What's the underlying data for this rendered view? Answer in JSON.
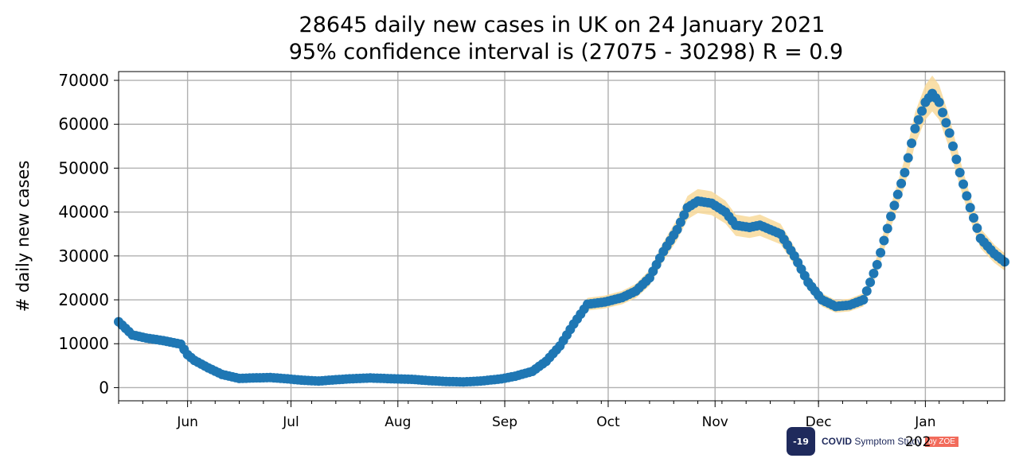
{
  "chart_data": {
    "type": "scatter",
    "title": [
      "28645 daily new cases in UK on 24 January 2021",
      "95% confidence interval is (27075 - 30298) R = 0.9"
    ],
    "ylabel": "# daily new cases",
    "xlabel": "",
    "x_tick_labels": [
      "Jun",
      "Jul",
      "Aug",
      "Sep",
      "Oct",
      "Nov",
      "Dec",
      "Jan"
    ],
    "year_label": "202",
    "y_ticks": [
      0,
      10000,
      20000,
      30000,
      40000,
      50000,
      60000,
      70000
    ],
    "xlim": [
      "2020-05-12",
      "2021-01-24"
    ],
    "ylim": [
      -3000,
      72000
    ],
    "grid": true,
    "colors": {
      "points": "#1f77b4",
      "confidence_band": "#f8d99a",
      "grid": "#b0b0b0"
    },
    "series": [
      {
        "points": [
          [
            "2020-05-12",
            15000
          ],
          [
            "2020-05-16",
            12000
          ],
          [
            "2020-05-20",
            11300
          ],
          [
            "2020-05-25",
            10700
          ],
          [
            "2020-05-30",
            9900
          ],
          [
            "2020-06-01",
            7500
          ],
          [
            "2020-06-03",
            6200
          ],
          [
            "2020-06-07",
            4500
          ],
          [
            "2020-06-11",
            3000
          ],
          [
            "2020-06-16",
            2100
          ],
          [
            "2020-06-20",
            2200
          ],
          [
            "2020-06-25",
            2300
          ],
          [
            "2020-06-30",
            2000
          ],
          [
            "2020-07-04",
            1700
          ],
          [
            "2020-07-09",
            1500
          ],
          [
            "2020-07-14",
            1800
          ],
          [
            "2020-07-18",
            2000
          ],
          [
            "2020-07-24",
            2200
          ],
          [
            "2020-07-31",
            2000
          ],
          [
            "2020-08-05",
            1900
          ],
          [
            "2020-08-10",
            1600
          ],
          [
            "2020-08-15",
            1400
          ],
          [
            "2020-08-20",
            1300
          ],
          [
            "2020-08-25",
            1500
          ],
          [
            "2020-08-31",
            2000
          ],
          [
            "2020-09-04",
            2600
          ],
          [
            "2020-09-09",
            3700
          ],
          [
            "2020-09-13",
            6000
          ],
          [
            "2020-09-17",
            9500
          ],
          [
            "2020-09-21",
            14500
          ],
          [
            "2020-09-25",
            19000
          ],
          [
            "2020-09-30",
            19500
          ],
          [
            "2020-10-05",
            20500
          ],
          [
            "2020-10-09",
            22000
          ],
          [
            "2020-10-13",
            25000
          ],
          [
            "2020-10-17",
            31000
          ],
          [
            "2020-10-21",
            36000
          ],
          [
            "2020-10-24",
            41000
          ],
          [
            "2020-10-27",
            42500
          ],
          [
            "2020-10-31",
            42000
          ],
          [
            "2020-11-04",
            40000
          ],
          [
            "2020-11-07",
            37000
          ],
          [
            "2020-11-11",
            36500
          ],
          [
            "2020-11-14",
            37000
          ],
          [
            "2020-11-17",
            36000
          ],
          [
            "2020-11-20",
            35000
          ],
          [
            "2020-11-24",
            30000
          ],
          [
            "2020-11-28",
            24000
          ],
          [
            "2020-12-02",
            20000
          ],
          [
            "2020-12-06",
            18500
          ],
          [
            "2020-12-10",
            18800
          ],
          [
            "2020-12-14",
            20000
          ],
          [
            "2020-12-18",
            28000
          ],
          [
            "2020-12-22",
            39000
          ],
          [
            "2020-12-26",
            49000
          ],
          [
            "2020-12-29",
            59000
          ],
          [
            "2021-01-01",
            65000
          ],
          [
            "2021-01-03",
            67000
          ],
          [
            "2021-01-05",
            65000
          ],
          [
            "2021-01-08",
            58000
          ],
          [
            "2021-01-11",
            49000
          ],
          [
            "2021-01-14",
            41000
          ],
          [
            "2021-01-17",
            34000
          ],
          [
            "2021-01-21",
            30500
          ],
          [
            "2021-01-24",
            28645
          ]
        ]
      }
    ]
  },
  "logo": {
    "badge_text": "-19",
    "brand_bold": "COVID",
    "brand_rest": " Symptom Study",
    "zoe_label": "by ZOE"
  }
}
